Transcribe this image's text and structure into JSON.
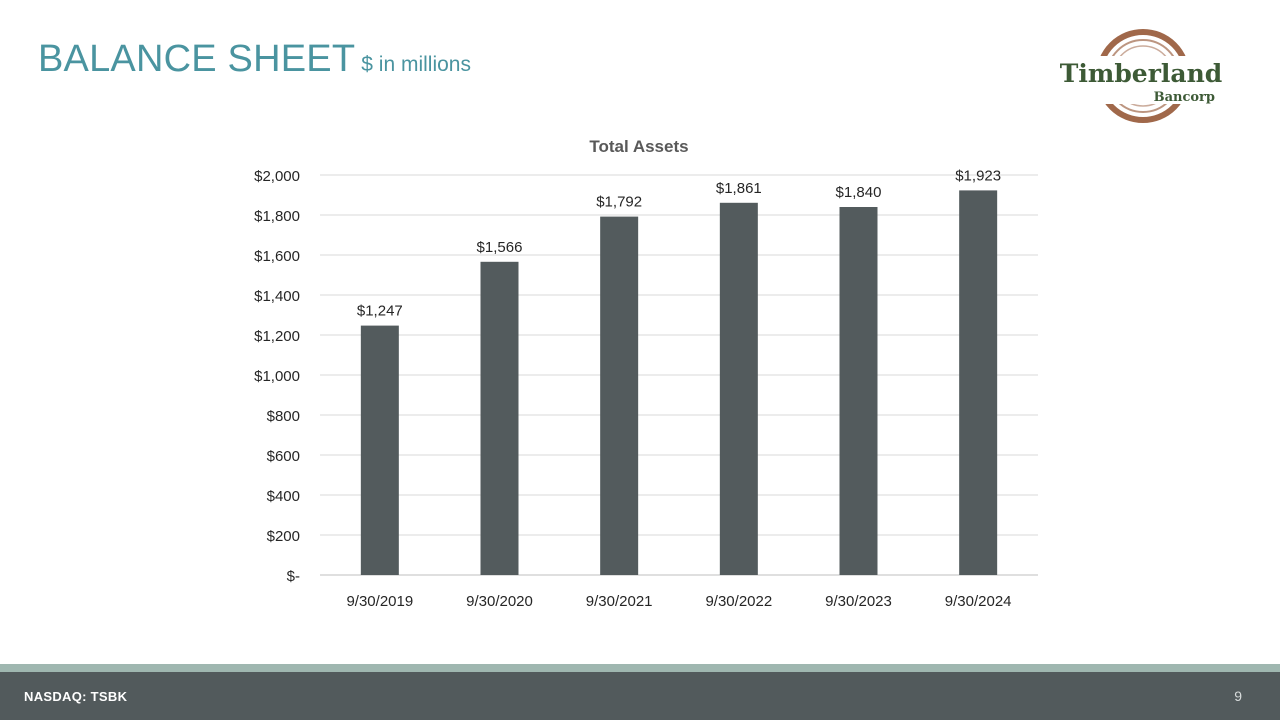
{
  "header": {
    "title": "BALANCE SHEET",
    "subtitle": "$ in millions"
  },
  "logo": {
    "name": "Timberland",
    "sub": "Bancorp"
  },
  "colors": {
    "accent": "#4a94a0",
    "bar": "#535b5d",
    "footer": "#525a5c",
    "stripe": "#9fb7b0",
    "logo_green": "#3d5a36",
    "logo_brown": "#a0684a"
  },
  "chart_data": {
    "type": "bar",
    "title": "Total Assets",
    "categories": [
      "9/30/2019",
      "9/30/2020",
      "9/30/2021",
      "9/30/2022",
      "9/30/2023",
      "9/30/2024"
    ],
    "values": [
      1247,
      1566,
      1792,
      1861,
      1840,
      1923
    ],
    "data_labels": [
      "$1,247",
      "$1,566",
      "$1,792",
      "$1,861",
      "$1,840",
      "$1,923"
    ],
    "y_ticks": [
      0,
      200,
      400,
      600,
      800,
      1000,
      1200,
      1400,
      1600,
      1800,
      2000
    ],
    "y_tick_labels": [
      "$-",
      "$200",
      "$400",
      "$600",
      "$800",
      "$1,000",
      "$1,200",
      "$1,400",
      "$1,600",
      "$1,800",
      "$2,000"
    ],
    "ylim": [
      0,
      2000
    ],
    "xlabel": "",
    "ylabel": "",
    "grid": true,
    "legend": "none"
  },
  "footer": {
    "ticker": "NASDAQ: TSBK",
    "page_number": "9"
  }
}
